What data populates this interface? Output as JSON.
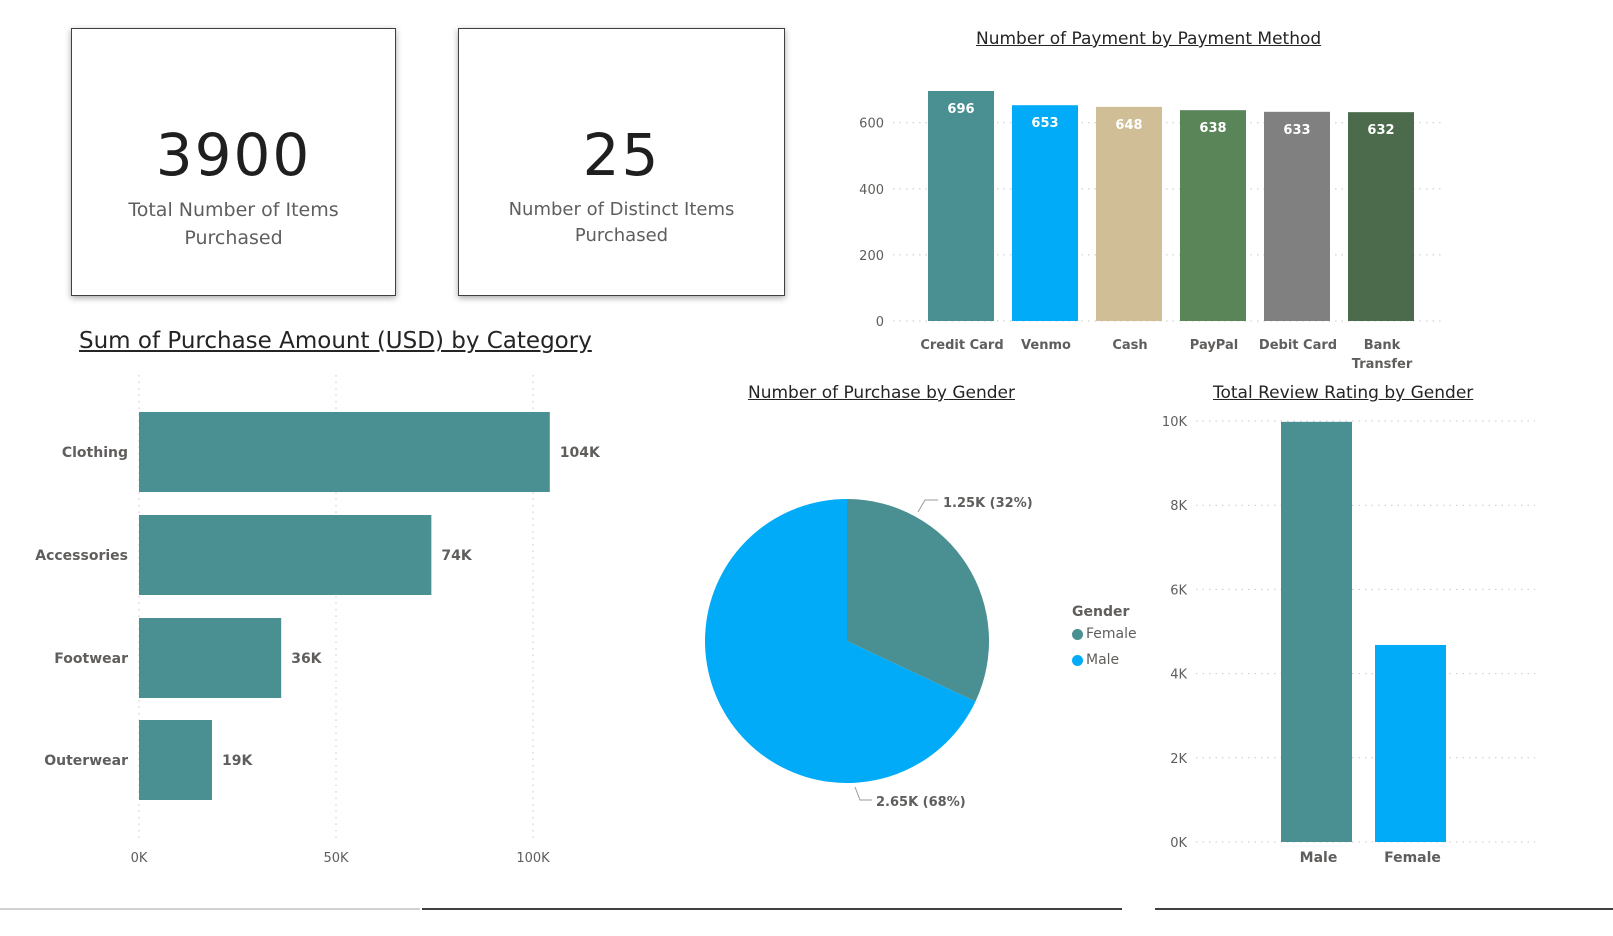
{
  "kpis": [
    {
      "value": "3900",
      "label": "Total Number of Items Purchased"
    },
    {
      "value": "25",
      "label": "Number of Distinct Items Purchased"
    }
  ],
  "colors": {
    "teal": "#4A8F91",
    "blue": "#01ABF8",
    "tan": "#CFBE96",
    "green": "#5A8558",
    "gray": "#808080",
    "darkgreen": "#4C6B4D"
  },
  "chart_data": [
    {
      "type": "bar",
      "title": "Number of Payment by Payment Method",
      "categories": [
        "Credit Card",
        "Venmo",
        "Cash",
        "PayPal",
        "Debit Card",
        "Bank Transfer"
      ],
      "values": [
        696,
        653,
        648,
        638,
        633,
        632
      ],
      "value_labels": [
        "696",
        "653",
        "648",
        "638",
        "633",
        "632"
      ],
      "bar_colors": [
        "#4A8F91",
        "#01ABF8",
        "#CFBE96",
        "#5A8558",
        "#808080",
        "#4C6B4D"
      ],
      "yticks": [
        "0",
        "200",
        "400",
        "600"
      ],
      "ylim": [
        0,
        700
      ],
      "grid": true
    },
    {
      "type": "bar",
      "orientation": "horizontal",
      "title": "Sum of Purchase Amount (USD) by Category",
      "categories": [
        "Clothing",
        "Accessories",
        "Footwear",
        "Outerwear"
      ],
      "values": [
        104264,
        74200,
        36093,
        18524
      ],
      "value_labels": [
        "104K",
        "74K",
        "36K",
        "19K"
      ],
      "xticks": [
        "0K",
        "50K",
        "100K"
      ],
      "xlim": [
        0,
        100000
      ],
      "grid": true
    },
    {
      "type": "pie",
      "title": "Number of Purchase by Gender",
      "legend_title": "Gender",
      "legend_position": "right",
      "slices": [
        {
          "label": "Female",
          "value": 1248,
          "display": "1.25K (32%)",
          "color": "#4A8F91"
        },
        {
          "label": "Male",
          "value": 2652,
          "display": "2.65K (68%)",
          "color": "#01ABF8"
        }
      ]
    },
    {
      "type": "bar",
      "title": "Total Review Rating by Gender",
      "categories": [
        "Male",
        "Female"
      ],
      "values": [
        9980,
        4680
      ],
      "bar_colors": [
        "#4A8F91",
        "#01ABF8"
      ],
      "yticks": [
        "0K",
        "2K",
        "4K",
        "6K",
        "8K",
        "10K"
      ],
      "ylim": [
        0,
        10000
      ],
      "grid": true
    }
  ]
}
